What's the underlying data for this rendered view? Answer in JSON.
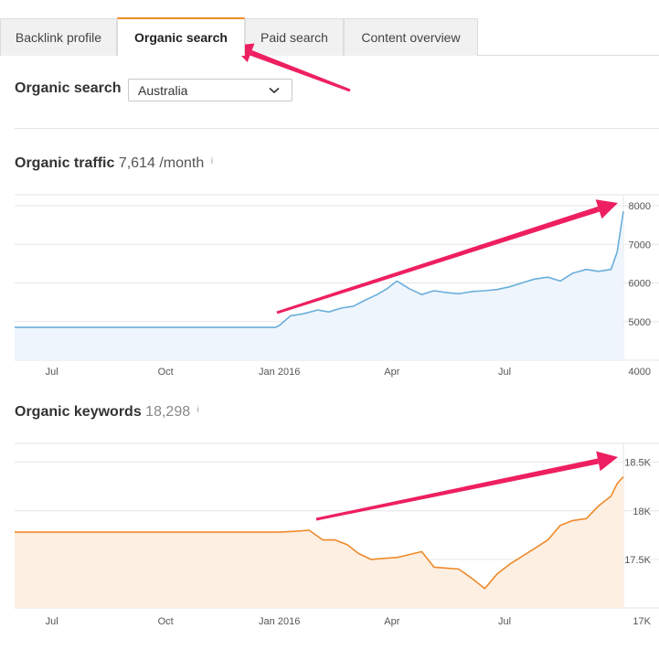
{
  "tabs": [
    {
      "label": "Backlink profile",
      "active": false
    },
    {
      "label": "Organic search",
      "active": true
    },
    {
      "label": "Paid search",
      "active": false
    },
    {
      "label": "Content overview",
      "active": false
    }
  ],
  "organic_search": {
    "label": "Organic search",
    "country_select": {
      "value": "Australia"
    }
  },
  "traffic": {
    "title": "Organic traffic",
    "value": "7,614",
    "unit": "/month",
    "info": "i"
  },
  "keywords": {
    "title": "Organic keywords",
    "value": "18,298",
    "info": "i"
  },
  "colors": {
    "accent_orange": "#f08a24",
    "traffic_line": "#6aaedb",
    "traffic_fill": "#eef5fc",
    "keywords_line": "#ee8a2a",
    "keywords_fill": "#fdefe2",
    "arrow": "#ee1f60"
  },
  "chart_data": [
    {
      "type": "area",
      "x": [
        "2015-06-01",
        "2015-07-01",
        "2015-08-01",
        "2015-09-01",
        "2015-10-01",
        "2015-11-01",
        "2015-12-01",
        "2015-12-29",
        "2016-01-01",
        "2016-01-10",
        "2016-01-20",
        "2016-02-01",
        "2016-02-10",
        "2016-02-20",
        "2016-03-01",
        "2016-03-10",
        "2016-03-20",
        "2016-03-28",
        "2016-04-05",
        "2016-04-15",
        "2016-04-25",
        "2016-05-05",
        "2016-05-15",
        "2016-05-25",
        "2016-06-05",
        "2016-06-15",
        "2016-06-25",
        "2016-07-05",
        "2016-07-15",
        "2016-07-25",
        "2016-08-05",
        "2016-08-15",
        "2016-08-25",
        "2016-09-05",
        "2016-09-15",
        "2016-09-25",
        "2016-09-30",
        "2016-10-05"
      ],
      "series": [
        {
          "values": [
            4850,
            4850,
            4850,
            4850,
            4850,
            4850,
            4850,
            4850,
            4900,
            5150,
            5200,
            5300,
            5250,
            5350,
            5400,
            5550,
            5700,
            5850,
            6050,
            5850,
            5700,
            5800,
            5750,
            5720,
            5780,
            5800,
            5830,
            5900,
            6000,
            6100,
            6150,
            6050,
            6250,
            6350,
            6300,
            6350,
            6800,
            7850
          ]
        }
      ],
      "xticks": [
        "Jul",
        "Oct",
        "Jan 2016",
        "Apr",
        "Jul"
      ],
      "yticks": [
        4000,
        5000,
        6000,
        7000,
        8000
      ],
      "ylim": [
        4000,
        8000
      ],
      "grid": true
    },
    {
      "type": "area",
      "x": [
        "2015-06-01",
        "2015-07-01",
        "2015-08-01",
        "2015-09-01",
        "2015-10-01",
        "2015-11-01",
        "2015-12-01",
        "2016-01-01",
        "2016-01-15",
        "2016-01-25",
        "2016-02-05",
        "2016-02-15",
        "2016-02-25",
        "2016-03-05",
        "2016-03-15",
        "2016-03-25",
        "2016-04-05",
        "2016-04-15",
        "2016-04-25",
        "2016-05-05",
        "2016-05-15",
        "2016-05-25",
        "2016-06-05",
        "2016-06-15",
        "2016-06-25",
        "2016-07-05",
        "2016-07-15",
        "2016-07-25",
        "2016-08-05",
        "2016-08-15",
        "2016-08-25",
        "2016-09-05",
        "2016-09-15",
        "2016-09-25",
        "2016-09-30",
        "2016-10-05"
      ],
      "series": [
        {
          "values": [
            17780,
            17780,
            17780,
            17780,
            17780,
            17780,
            17780,
            17780,
            17790,
            17800,
            17700,
            17700,
            17650,
            17560,
            17500,
            17510,
            17520,
            17550,
            17580,
            17420,
            17410,
            17400,
            17300,
            17200,
            17350,
            17450,
            17530,
            17610,
            17700,
            17850,
            17900,
            17920,
            18050,
            18150,
            18280,
            18350
          ]
        }
      ],
      "xticks": [
        "Jul",
        "Oct",
        "Jan 2016",
        "Apr",
        "Jul"
      ],
      "yticks": [
        "17K",
        "17.5K",
        "18K",
        "18.5K"
      ],
      "ytick_values": [
        17000,
        17500,
        18000,
        18500
      ],
      "ylim": [
        17000,
        18600
      ],
      "grid": true
    }
  ]
}
